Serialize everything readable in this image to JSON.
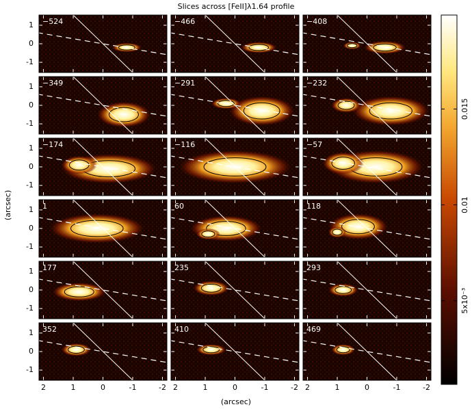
{
  "chart_data": {
    "type": "channel-maps",
    "title": "Slices across [FeII]λ1.64 profile",
    "xlabel": "(arcsec)",
    "ylabel": "(arcsec)",
    "panels": [
      "−524",
      "−466",
      "−408",
      "−349",
      "−291",
      "−232",
      "−174",
      "−116",
      "−57",
      "1",
      "60",
      "118",
      "177",
      "235",
      "293",
      "352",
      "410",
      "469"
    ],
    "xlim": [
      2.15,
      -2.15
    ],
    "xticks": [
      2,
      1,
      0,
      -1,
      -2
    ],
    "ylim": [
      -1.55,
      1.55
    ],
    "yticks": [
      1,
      0,
      -1
    ],
    "colorbar": {
      "lim": [
        0.00064,
        0.0199
      ],
      "ticks": [
        {
          "value": 0.005,
          "label": "5x10⁻³"
        },
        {
          "value": 0.01,
          "label": "0.01"
        },
        {
          "value": 0.015,
          "label": "0.015"
        }
      ]
    }
  }
}
